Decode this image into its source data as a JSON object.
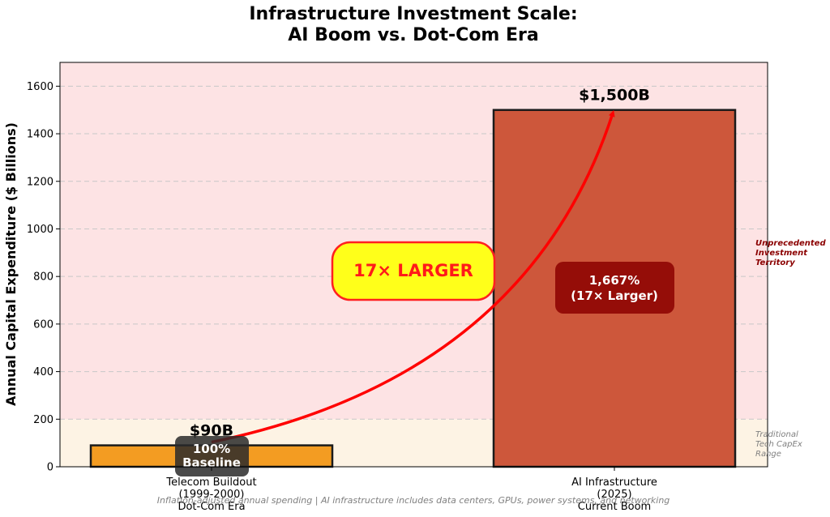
{
  "chart_data": {
    "type": "bar",
    "title_lines": [
      "Infrastructure Investment Scale:",
      "AI Boom vs. Dot-Com Era"
    ],
    "ylabel": "Annual Capital Expenditure ($ Billions)",
    "ylim": [
      0,
      1700
    ],
    "yticks": [
      0,
      200,
      400,
      600,
      800,
      1000,
      1200,
      1400,
      1600
    ],
    "grid": true,
    "categories": [
      [
        "Telecom Buildout",
        "(1999-2000)",
        "Dot-Com Era"
      ],
      [
        "AI Infrastructure",
        "(2025)",
        "Current Boom"
      ]
    ],
    "values": [
      90,
      1500
    ],
    "value_labels": [
      "$90B",
      "$1,500B"
    ],
    "bar_colors": [
      "#f39c22",
      "#cd573b"
    ],
    "inbar_labels": [
      [
        "100%",
        "Baseline"
      ],
      [
        "1,667%",
        "(17× Larger)"
      ]
    ],
    "callout": "17× LARGER",
    "bands": [
      {
        "from": 0,
        "to": 200,
        "color": "#fdf3e4",
        "label": [
          "Traditional",
          "Tech CapEx",
          "Range"
        ]
      },
      {
        "from": 200,
        "to": 1700,
        "color": "#fde3e4",
        "label": [
          "Unprecedented",
          "Investment",
          "Territory"
        ]
      }
    ],
    "footer": "Inflation-adjusted annual spending | AI infrastructure includes data centers, GPUs, power systems, and networking"
  }
}
